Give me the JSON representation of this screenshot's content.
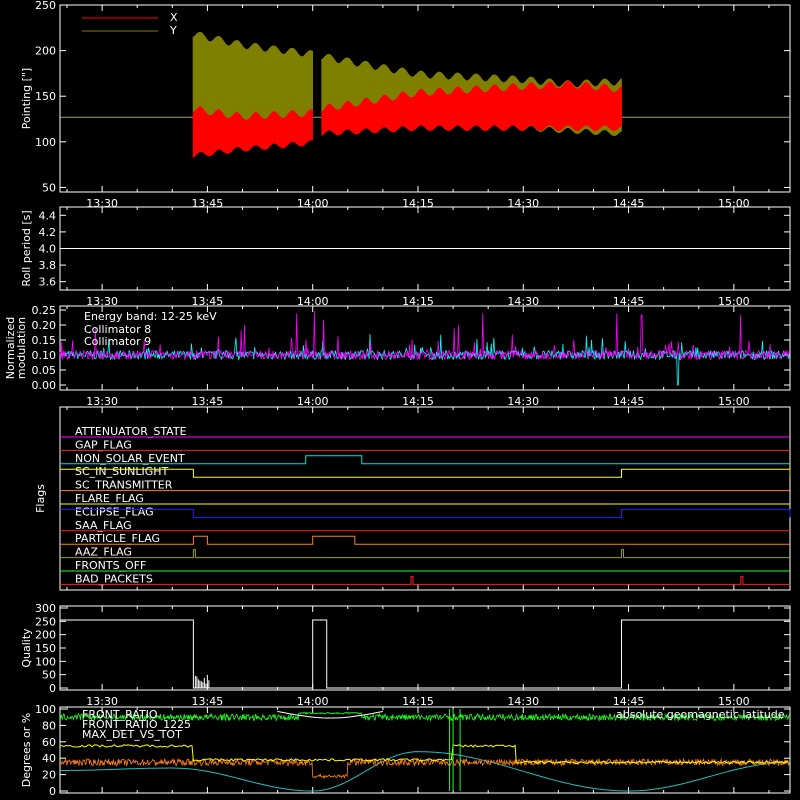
{
  "chart_data": [
    {
      "type": "line",
      "ylabel": "Pointing [\"]",
      "ylim": [
        45,
        250
      ],
      "yticks": [
        50,
        100,
        150,
        200,
        250
      ],
      "x_range": [
        "13:24",
        "15:08"
      ],
      "x_ticklabels": [
        "13:30",
        "13:45",
        "14:00",
        "14:15",
        "14:30",
        "14:45",
        "15:00"
      ],
      "legend_placement": "top-left",
      "reference_line": 127,
      "series": [
        {
          "name": "X",
          "color": "#ff0000",
          "x": [
            "13:43",
            "13:50",
            "14:00",
            "14:01",
            "14:15",
            "14:30",
            "14:44"
          ],
          "ymin": [
            88,
            95,
            102,
            112,
            118,
            118,
            118
          ],
          "ymax": [
            140,
            132,
            136,
            140,
            158,
            165,
            170
          ]
        },
        {
          "name": "Y",
          "color": "#808000",
          "x": [
            "13:43",
            "13:50",
            "14:00",
            "14:01",
            "14:15",
            "14:30",
            "14:44"
          ],
          "ymin": [
            128,
            132,
            135,
            123,
            122,
            118,
            112
          ],
          "ymax": [
            222,
            210,
            200,
            198,
            178,
            172,
            162
          ]
        }
      ]
    },
    {
      "type": "line",
      "ylabel": "Roll period [s]",
      "ylim": [
        3.5,
        4.5
      ],
      "yticks": [
        3.6,
        3.8,
        4.0,
        4.2,
        4.4
      ],
      "x_ticklabels": [
        "13:30",
        "13:45",
        "14:00",
        "14:15",
        "14:30",
        "14:45",
        "15:00"
      ],
      "series": [
        {
          "name": "",
          "color": "#ffffff",
          "x": [
            "13:24",
            "15:08"
          ],
          "y": [
            4.0,
            4.0
          ]
        }
      ]
    },
    {
      "type": "line",
      "ylabel": "Normalized modulation",
      "ylim": [
        0,
        0.25
      ],
      "yticks": [
        0.0,
        0.05,
        0.1,
        0.15,
        0.2,
        0.25
      ],
      "x_ticklabels": [
        "13:30",
        "13:45",
        "14:00",
        "14:15",
        "14:30",
        "14:45",
        "15:00"
      ],
      "annotation": "Energy band: 12-25 keV",
      "series": [
        {
          "name": "Collimator 8",
          "color": "#00ffff",
          "baseline": 0.1
        },
        {
          "name": "Collimator 9",
          "color": "#ff00ff",
          "baseline": 0.1
        }
      ]
    },
    {
      "type": "line",
      "ylabel": "Flags",
      "x_ticklabels": [
        "13:30",
        "13:45",
        "14:00",
        "14:15",
        "14:30",
        "14:45",
        "15:00"
      ],
      "flags": [
        {
          "name": "ATTENUATOR_STATE",
          "color": "#ff00ff",
          "on": []
        },
        {
          "name": "GAP_FLAG",
          "color": "#ff2020",
          "on": []
        },
        {
          "name": "NON_SOLAR_EVENT",
          "color": "#00e0e0",
          "on": [
            [
              "13:59",
              "14:07"
            ]
          ]
        },
        {
          "name": "SC_IN_SUNLIGHT",
          "color": "#ffff00",
          "on": [
            [
              "13:24",
              "13:43"
            ],
            [
              "14:44",
              "15:08"
            ]
          ]
        },
        {
          "name": "SC_TRANSMITTER",
          "color": "#ff8020",
          "on": []
        },
        {
          "name": "FLARE_FLAG",
          "color": "#ffff00",
          "on": []
        },
        {
          "name": "ECLIPSE_FLAG",
          "color": "#2020ff",
          "on": [
            [
              "13:24",
              "13:43"
            ],
            [
              "14:44",
              "15:08"
            ]
          ]
        },
        {
          "name": "SAA_FLAG",
          "color": "#ff2020",
          "on": []
        },
        {
          "name": "PARTICLE_FLAG",
          "color": "#ff8020",
          "on": [
            [
              "13:43",
              "13:45"
            ],
            [
              "14:00",
              "14:06"
            ]
          ]
        },
        {
          "name": "AAZ_FLAG",
          "color": "#a0a000",
          "on": [
            [
              "13:43",
              "13:43"
            ],
            [
              "14:44",
              "14:44"
            ]
          ]
        },
        {
          "name": "FRONTS_OFF",
          "color": "#20ff20",
          "on": []
        },
        {
          "name": "BAD_PACKETS",
          "color": "#ff2020",
          "on": [
            [
              "14:14",
              "14:14"
            ],
            [
              "15:01",
              "15:01"
            ]
          ]
        }
      ]
    },
    {
      "type": "line",
      "ylabel": "Quality",
      "ylim": [
        0,
        300
      ],
      "yticks": [
        0,
        50,
        100,
        150,
        200,
        250,
        300
      ],
      "x_ticklabels": [
        "13:30",
        "13:45",
        "14:00",
        "14:15",
        "14:30",
        "14:45",
        "15:00"
      ],
      "series": [
        {
          "name": "",
          "color": "#ffffff",
          "segments": [
            {
              "x": [
                "13:24",
                "13:43"
              ],
              "y": 255
            },
            {
              "x": [
                "14:00",
                "14:02"
              ],
              "y": 255
            },
            {
              "x": [
                "14:44",
                "15:08"
              ],
              "y": 255
            }
          ]
        }
      ]
    },
    {
      "type": "line",
      "ylabel": "Degrees or %",
      "ylim": [
        0,
        100
      ],
      "yticks": [
        0,
        20,
        40,
        60,
        80,
        100
      ],
      "series": [
        {
          "name": "FRONT_RATIO",
          "color": "#ffffff"
        },
        {
          "name": "FRONT_RATIO_1225",
          "color": "#20ff20",
          "baseline": 90
        },
        {
          "name": "MAX_DET_VS_TOT",
          "color": "#ff8020",
          "baseline": 35
        },
        {
          "name": "absolute geomagnetic latitude",
          "color": "#20c0c0",
          "x": [
            "13:24",
            "13:40",
            "14:00",
            "14:15",
            "14:45",
            "15:08"
          ],
          "y": [
            25,
            28,
            0,
            48,
            0,
            35
          ]
        },
        {
          "name": "",
          "color": "#ffff00",
          "segments": [
            {
              "x": [
                "13:24",
                "13:43"
              ],
              "y": 55
            },
            {
              "x": [
                "13:43",
                "14:20"
              ],
              "y": 38
            },
            {
              "x": [
                "14:20",
                "14:29"
              ],
              "y": 55
            },
            {
              "x": [
                "14:29",
                "15:08"
              ],
              "y": 35
            }
          ]
        }
      ]
    }
  ]
}
